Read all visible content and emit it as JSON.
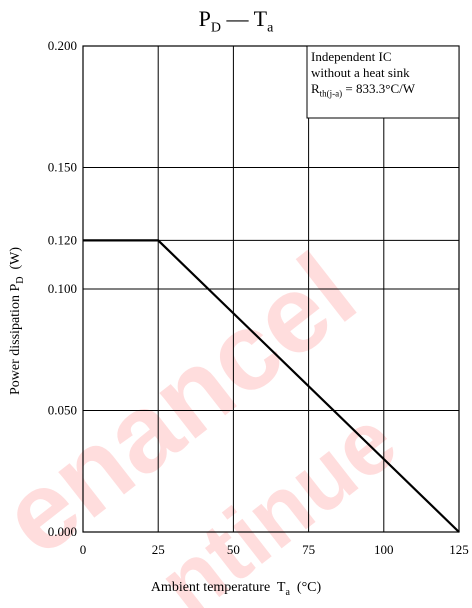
{
  "chart_data": {
    "type": "line",
    "title": {
      "main": "P",
      "main_sub": "D",
      "sep": " — ",
      "second": "T",
      "second_sub": "a"
    },
    "xlabel": {
      "text": "Ambient temperature  T",
      "sub": "a",
      "unit": "  (°C)"
    },
    "ylabel": {
      "text": "Power dissipation  P",
      "sub": "D",
      "unit": "  (W)"
    },
    "xlim": [
      0,
      125
    ],
    "ylim": [
      0,
      0.2
    ],
    "x_ticks": [
      0,
      25,
      50,
      75,
      100,
      125
    ],
    "x_tick_labels": [
      "0",
      "25",
      "50",
      "75",
      "100",
      "125"
    ],
    "y_ticks": [
      0,
      0.05,
      0.1,
      0.12,
      0.15,
      0.2
    ],
    "y_tick_labels": [
      "0.000",
      "0.050",
      "0.100",
      "0.120",
      "0.150",
      "0.200"
    ],
    "grid": true,
    "series": [
      {
        "x": [
          0,
          25,
          125
        ],
        "y": [
          0.12,
          0.12,
          0.0
        ],
        "color": "#000000"
      }
    ],
    "annotation": {
      "line1": "Independent IC",
      "line2": "without a heat sink",
      "line3_main": "R",
      "line3_sub": "th(j-a)",
      "line3_rest": " = 833.3°C/W"
    }
  },
  "watermark": {
    "text": "maintenance / discontinued",
    "color": "#ff0000"
  }
}
